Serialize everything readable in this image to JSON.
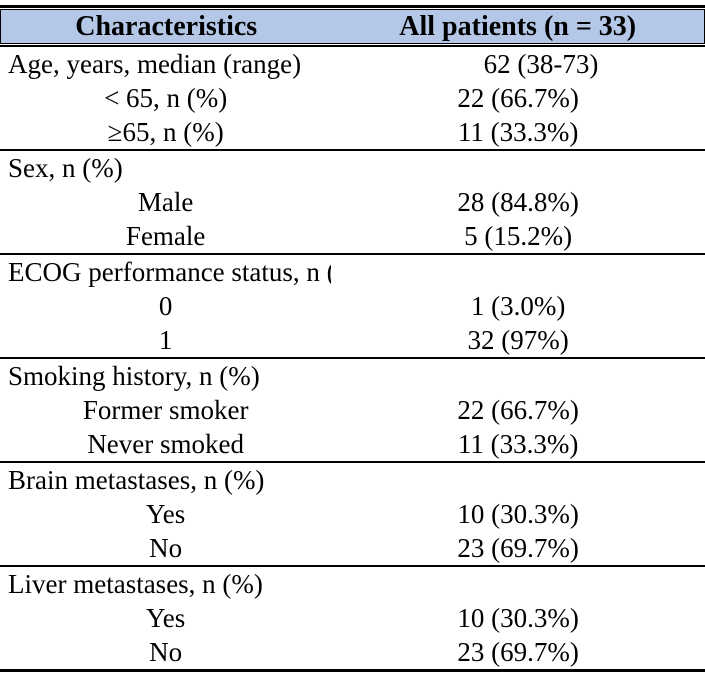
{
  "table": {
    "header_bg": "#B4C7E6",
    "border_color": "#000000",
    "columns": [
      "Characteristics",
      "All patients (n = 33)"
    ],
    "sections": [
      {
        "rows": [
          {
            "label": "Age, years, median (range)",
            "value": "62 (38-73)",
            "indent": false
          },
          {
            "label": "< 65, n (%)",
            "value": "22 (66.7%)",
            "indent": true
          },
          {
            "label": "≥65, n (%)",
            "value": "11 (33.3%)",
            "indent": true
          }
        ]
      },
      {
        "rows": [
          {
            "label": "Sex, n (%)",
            "value": "",
            "indent": false
          },
          {
            "label": "Male",
            "value": "28 (84.8%)",
            "indent": true
          },
          {
            "label": "Female",
            "value": "5 (15.2%)",
            "indent": true
          }
        ]
      },
      {
        "rows": [
          {
            "label": "ECOG performance status, n (%)",
            "value": "",
            "indent": false
          },
          {
            "label": "0",
            "value": "1 (3.0%)",
            "indent": true
          },
          {
            "label": "1",
            "value": "32 (97%)",
            "indent": true
          }
        ]
      },
      {
        "rows": [
          {
            "label": "Smoking history, n (%)",
            "value": "",
            "indent": false
          },
          {
            "label": "Former smoker",
            "value": "22 (66.7%)",
            "indent": true
          },
          {
            "label": "Never smoked",
            "value": "11 (33.3%)",
            "indent": true
          }
        ]
      },
      {
        "rows": [
          {
            "label": "Brain metastases, n (%)",
            "value": "",
            "indent": false
          },
          {
            "label": "Yes",
            "value": "10 (30.3%)",
            "indent": true
          },
          {
            "label": "No",
            "value": "23 (69.7%)",
            "indent": true
          }
        ]
      },
      {
        "rows": [
          {
            "label": "Liver metastases, n (%)",
            "value": "",
            "indent": false
          },
          {
            "label": "Yes",
            "value": "10 (30.3%)",
            "indent": true
          },
          {
            "label": "No",
            "value": "23 (69.7%)",
            "indent": true
          }
        ]
      }
    ]
  }
}
